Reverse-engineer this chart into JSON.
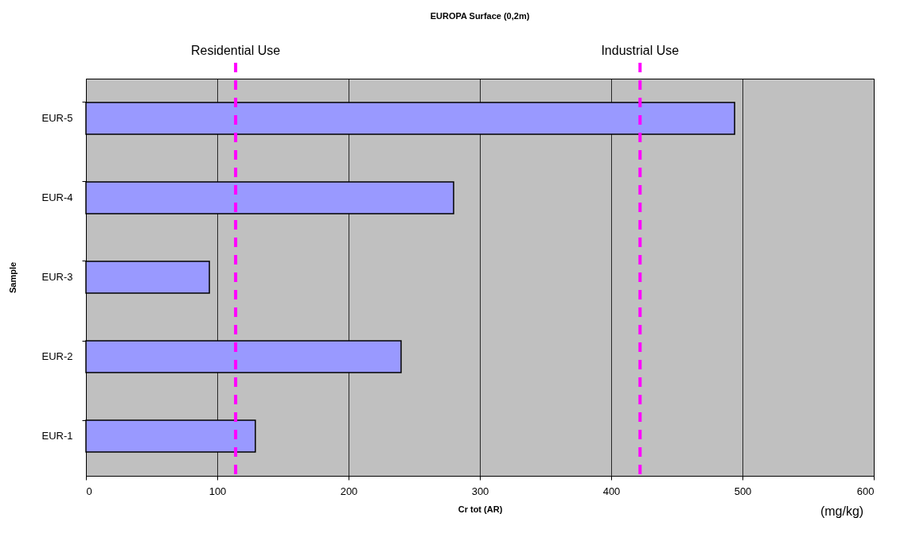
{
  "chart_data": {
    "type": "bar",
    "orientation": "horizontal",
    "title": "EUROPA Surface (0,2m)",
    "xlabel": "Cr tot (AR)",
    "ylabel": "Sample",
    "categories": [
      "EUR-5",
      "EUR-4",
      "EUR-3",
      "EUR-2",
      "EUR-1"
    ],
    "values": [
      494,
      280,
      94,
      240,
      129
    ],
    "color": "#9999ff",
    "xlim": [
      0,
      600
    ],
    "xticks": [
      0,
      100,
      200,
      300,
      400,
      500,
      600
    ],
    "grid": "x",
    "ref_lines": [
      {
        "axis": "x",
        "value": 114,
        "label": "Residential Use",
        "color": "#ff00ff",
        "line_style": "dashed"
      },
      {
        "axis": "x",
        "value": 422,
        "label": "Industrial Use",
        "color": "#ff00ff",
        "line_style": "dashed"
      }
    ],
    "annotations": [
      "(mg/kg)"
    ]
  }
}
